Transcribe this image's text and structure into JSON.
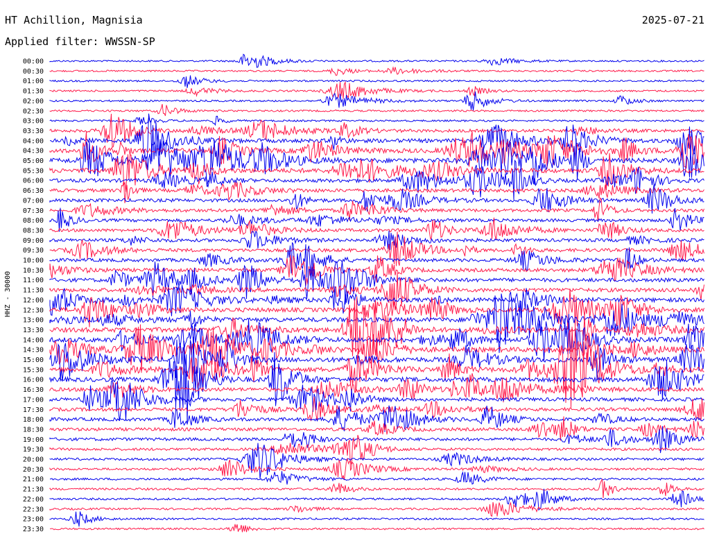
{
  "header": {
    "station": "HT Achillion, Magnisia",
    "date": "2025-07-21",
    "filter": "Applied filter: WWSSN-SP"
  },
  "chart_data": {
    "type": "line",
    "ylabel": "HHZ - 30000",
    "row_labels": [
      "00:00",
      "00:30",
      "01:00",
      "01:30",
      "02:00",
      "02:30",
      "03:00",
      "03:30",
      "04:00",
      "04:30",
      "05:00",
      "05:30",
      "06:00",
      "06:30",
      "07:00",
      "07:30",
      "08:00",
      "08:30",
      "09:00",
      "09:30",
      "10:00",
      "10:30",
      "11:00",
      "11:30",
      "12:00",
      "12:30",
      "13:00",
      "13:30",
      "14:00",
      "14:30",
      "15:00",
      "15:30",
      "16:00",
      "16:30",
      "17:00",
      "17:30",
      "18:00",
      "18:30",
      "19:00",
      "19:30",
      "20:00",
      "20:30",
      "21:00",
      "21:30",
      "22:00",
      "22:30",
      "23:00",
      "23:30"
    ],
    "trace_colors": [
      "#0000ee",
      "#ff1a4a"
    ],
    "activity_profile": [
      0.05,
      0.06,
      0.07,
      0.07,
      0.08,
      0.08,
      0.08,
      0.3,
      0.45,
      0.55,
      0.6,
      0.55,
      0.4,
      0.35,
      0.35,
      0.32,
      0.3,
      0.3,
      0.32,
      0.35,
      0.35,
      0.38,
      0.42,
      0.45,
      0.5,
      0.52,
      0.55,
      0.6,
      0.62,
      0.62,
      0.62,
      0.6,
      0.55,
      0.42,
      0.38,
      0.36,
      0.35,
      0.32,
      0.28,
      0.22,
      0.18,
      0.15,
      0.14,
      0.13,
      0.12,
      0.1,
      0.09,
      0.08
    ]
  }
}
